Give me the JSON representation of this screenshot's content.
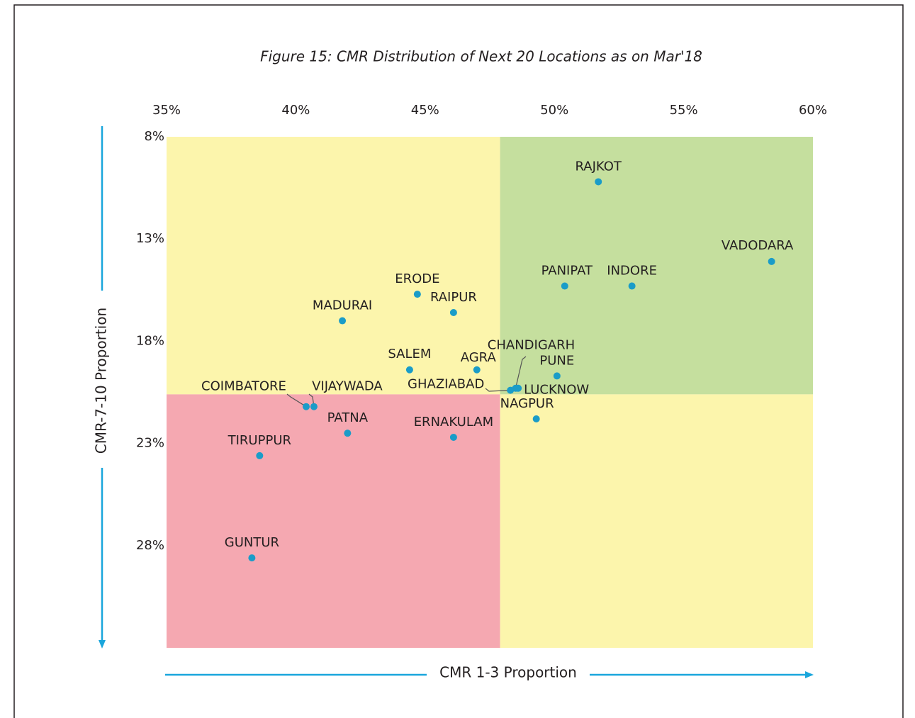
{
  "chart_data": {
    "type": "scatter",
    "title": "Figure 15: CMR Distribution of Next 20 Locations as on Mar'18",
    "xlabel": "CMR 1-3 Proportion",
    "ylabel": "CMR-7-10 Proportion",
    "xlim": [
      35,
      60
    ],
    "ylim": [
      8,
      33
    ],
    "y_inverted": true,
    "xticks": [
      {
        "value": 35,
        "label": "35%"
      },
      {
        "value": 40,
        "label": "40%"
      },
      {
        "value": 45,
        "label": "45%"
      },
      {
        "value": 50,
        "label": "50%"
      },
      {
        "value": 55,
        "label": "55%"
      },
      {
        "value": 60,
        "label": "60%"
      }
    ],
    "yticks": [
      {
        "value": 8,
        "label": "8%"
      },
      {
        "value": 13,
        "label": "13%"
      },
      {
        "value": 18,
        "label": "18%"
      },
      {
        "value": 23,
        "label": "23%"
      },
      {
        "value": 28,
        "label": "28%"
      }
    ],
    "quadrants": {
      "x_split": 47.9,
      "y_split": 20.6,
      "colors": {
        "top_left": "#fcf5ac",
        "top_right": "#c5df9e",
        "bottom_left": "#f5a8b1",
        "bottom_right": "#fcf5ac"
      }
    },
    "color": "#1a9cc8",
    "points": [
      {
        "label": "RAJKOT",
        "x": 51.7,
        "y": 10.2
      },
      {
        "label": "VADODARA",
        "x": 58.4,
        "y": 14.1
      },
      {
        "label": "PANIPAT",
        "x": 50.4,
        "y": 15.3
      },
      {
        "label": "INDORE",
        "x": 53.0,
        "y": 15.3
      },
      {
        "label": "ERODE",
        "x": 44.7,
        "y": 15.7
      },
      {
        "label": "RAIPUR",
        "x": 46.1,
        "y": 16.6
      },
      {
        "label": "MADURAI",
        "x": 41.8,
        "y": 17.0
      },
      {
        "label": "SALEM",
        "x": 44.4,
        "y": 19.4
      },
      {
        "label": "AGRA",
        "x": 47.0,
        "y": 19.4
      },
      {
        "label": "PUNE",
        "x": 50.1,
        "y": 19.7
      },
      {
        "label": "CHANDIGARH",
        "x": 48.5,
        "y": 20.3
      },
      {
        "label": "GHAZIABAD",
        "x": 48.3,
        "y": 20.4
      },
      {
        "label": "LUCKNOW",
        "x": 48.6,
        "y": 20.3
      },
      {
        "label": "NAGPUR",
        "x": 49.3,
        "y": 21.8
      },
      {
        "label": "COIMBATORE",
        "x": 40.4,
        "y": 21.2
      },
      {
        "label": "VIJAYWADA",
        "x": 40.7,
        "y": 21.2
      },
      {
        "label": "PATNA",
        "x": 42.0,
        "y": 22.5
      },
      {
        "label": "ERNAKULAM",
        "x": 46.1,
        "y": 22.7
      },
      {
        "label": "TIRUPPUR",
        "x": 38.6,
        "y": 23.6
      },
      {
        "label": "GUNTUR",
        "x": 38.3,
        "y": 28.6
      }
    ]
  }
}
